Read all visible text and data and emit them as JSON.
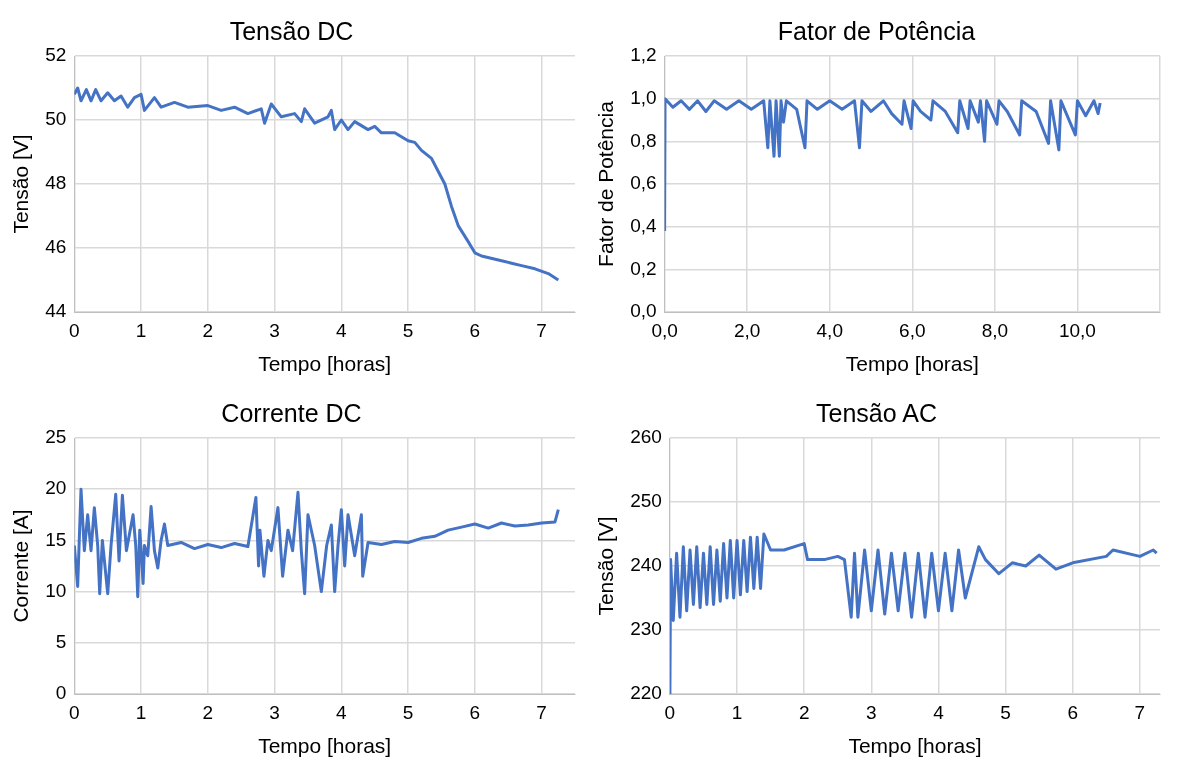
{
  "chart_data": [
    {
      "type": "line",
      "title": "Tensão DC",
      "xlabel": "Tempo [horas]",
      "ylabel": "Tensão [V]",
      "xlim": [
        0,
        7.5
      ],
      "xticks": [
        0,
        1,
        2,
        3,
        4,
        5,
        6,
        7
      ],
      "ylim": [
        44,
        52
      ],
      "yticks": [
        44,
        46,
        48,
        50,
        52
      ],
      "grid": true,
      "series": [
        {
          "color": "#4472c4",
          "x": [
            0,
            0.05,
            0.1,
            0.18,
            0.25,
            0.32,
            0.4,
            0.5,
            0.6,
            0.7,
            0.8,
            0.9,
            1.0,
            1.05,
            1.2,
            1.3,
            1.5,
            1.7,
            2.0,
            2.2,
            2.4,
            2.6,
            2.8,
            2.85,
            2.95,
            3.1,
            3.3,
            3.4,
            3.45,
            3.6,
            3.8,
            3.85,
            3.9,
            4.0,
            4.1,
            4.2,
            4.4,
            4.5,
            4.6,
            4.8,
            5.0,
            5.1,
            5.2,
            5.35,
            5.45,
            5.55,
            5.65,
            5.75,
            5.9,
            6.0,
            6.1,
            6.4,
            6.7,
            6.9,
            7.1,
            7.25
          ],
          "values": [
            50.8,
            51.0,
            50.6,
            50.95,
            50.6,
            50.95,
            50.6,
            50.85,
            50.6,
            50.75,
            50.4,
            50.7,
            50.8,
            50.3,
            50.7,
            50.4,
            50.55,
            50.4,
            50.45,
            50.3,
            50.4,
            50.2,
            50.35,
            49.9,
            50.5,
            50.1,
            50.2,
            49.95,
            50.35,
            49.9,
            50.1,
            50.3,
            49.7,
            50.0,
            49.7,
            49.95,
            49.7,
            49.8,
            49.6,
            49.6,
            49.35,
            49.3,
            49.05,
            48.8,
            48.4,
            48.0,
            47.3,
            46.7,
            46.2,
            45.85,
            45.75,
            45.6,
            45.45,
            45.35,
            45.2,
            45.0
          ]
        }
      ]
    },
    {
      "type": "line",
      "title": "Fator de Potência",
      "xlabel": "Tempo [horas]",
      "ylabel": "Fator de Potência",
      "xlim": [
        0,
        12
      ],
      "xticks": [
        {
          "value": 0,
          "label": "0,0"
        },
        {
          "value": 2,
          "label": "2,0"
        },
        {
          "value": 4,
          "label": "4,0"
        },
        {
          "value": 6,
          "label": "6,0"
        },
        {
          "value": 8,
          "label": "8,0"
        },
        {
          "value": 10,
          "label": "10,0"
        },
        {
          "value": 12,
          "label": null
        }
      ],
      "ylim": [
        0,
        1.2
      ],
      "yticks": [
        {
          "value": 0,
          "label": "0,0"
        },
        {
          "value": 0.2,
          "label": "0,2"
        },
        {
          "value": 0.4,
          "label": "0,4"
        },
        {
          "value": 0.6,
          "label": "0,6"
        },
        {
          "value": 0.8,
          "label": "0,8"
        },
        {
          "value": 1.0,
          "label": "1,0"
        },
        {
          "value": 1.2,
          "label": "1,2"
        }
      ],
      "grid": true,
      "series": [
        {
          "color": "#4472c4",
          "x": [
            0,
            0.01,
            0.2,
            0.4,
            0.6,
            0.8,
            1.0,
            1.2,
            1.5,
            1.8,
            2.1,
            2.4,
            2.5,
            2.55,
            2.65,
            2.7,
            2.78,
            2.82,
            2.88,
            2.95,
            3.2,
            3.4,
            3.45,
            3.7,
            4.0,
            4.3,
            4.6,
            4.72,
            4.78,
            5.0,
            5.3,
            5.5,
            5.75,
            5.8,
            5.97,
            6.02,
            6.2,
            6.45,
            6.5,
            6.8,
            7.1,
            7.15,
            7.35,
            7.4,
            7.6,
            7.65,
            7.75,
            7.8,
            8.05,
            8.1,
            8.3,
            8.6,
            8.65,
            9.0,
            9.3,
            9.35,
            9.55,
            9.6,
            9.95,
            10.0,
            10.2,
            10.4,
            10.5,
            10.55
          ],
          "values": [
            0.38,
            1.0,
            0.96,
            0.99,
            0.95,
            0.99,
            0.94,
            0.99,
            0.95,
            0.99,
            0.95,
            0.99,
            0.77,
            0.99,
            0.73,
            0.99,
            0.73,
            0.99,
            0.89,
            0.99,
            0.95,
            0.77,
            0.99,
            0.95,
            0.99,
            0.95,
            0.99,
            0.77,
            0.99,
            0.94,
            0.99,
            0.93,
            0.88,
            0.99,
            0.86,
            0.99,
            0.94,
            0.9,
            0.99,
            0.94,
            0.84,
            0.99,
            0.86,
            0.99,
            0.89,
            0.99,
            0.8,
            0.99,
            0.88,
            0.99,
            0.94,
            0.83,
            0.99,
            0.94,
            0.79,
            0.99,
            0.76,
            0.99,
            0.83,
            0.99,
            0.92,
            0.99,
            0.93,
            0.98
          ]
        }
      ]
    },
    {
      "type": "line",
      "title": "Corrente DC",
      "xlabel": "Tempo [horas]",
      "ylabel": "Corrente [A]",
      "xlim": [
        0,
        7.5
      ],
      "xticks": [
        0,
        1,
        2,
        3,
        4,
        5,
        6,
        7
      ],
      "ylim": [
        0,
        25
      ],
      "yticks": [
        0,
        5,
        10,
        15,
        20,
        25
      ],
      "grid": true,
      "series": [
        {
          "color": "#4472c4",
          "x": [
            0,
            0.05,
            0.1,
            0.15,
            0.2,
            0.25,
            0.3,
            0.35,
            0.38,
            0.42,
            0.5,
            0.55,
            0.62,
            0.67,
            0.72,
            0.78,
            0.88,
            0.92,
            0.95,
            0.98,
            1.0,
            1.03,
            1.05,
            1.1,
            1.15,
            1.2,
            1.25,
            1.3,
            1.35,
            1.4,
            1.6,
            1.8,
            2.0,
            2.2,
            2.4,
            2.6,
            2.72,
            2.76,
            2.78,
            2.84,
            2.9,
            2.95,
            3.05,
            3.12,
            3.2,
            3.27,
            3.35,
            3.4,
            3.45,
            3.5,
            3.6,
            3.7,
            3.78,
            3.85,
            3.9,
            3.95,
            4.0,
            4.05,
            4.1,
            4.2,
            4.3,
            4.32,
            4.4,
            4.6,
            4.8,
            5.0,
            5.2,
            5.4,
            5.6,
            5.8,
            6.0,
            6.2,
            6.4,
            6.6,
            6.8,
            7.0,
            7.2,
            7.25
          ],
          "values": [
            14.5,
            10.5,
            20.0,
            14.0,
            17.5,
            14.0,
            18.2,
            14.5,
            9.8,
            15.0,
            9.8,
            14.5,
            19.5,
            13.0,
            19.4,
            14.0,
            17.5,
            14.5,
            9.5,
            16.0,
            14.0,
            10.8,
            14.5,
            13.5,
            18.3,
            14.0,
            12.3,
            15.0,
            16.6,
            14.5,
            14.8,
            14.2,
            14.6,
            14.3,
            14.7,
            14.4,
            19.2,
            12.5,
            16.0,
            11.5,
            15.0,
            14.0,
            18.2,
            11.5,
            16.0,
            14.0,
            19.7,
            14.0,
            9.8,
            17.5,
            14.5,
            10.0,
            14.5,
            16.5,
            10.0,
            14.5,
            18.0,
            12.5,
            17.5,
            13.5,
            17.5,
            11.5,
            14.8,
            14.6,
            14.9,
            14.8,
            15.2,
            15.4,
            16.0,
            16.3,
            16.6,
            16.2,
            16.7,
            16.4,
            16.5,
            16.7,
            16.8,
            18.0
          ]
        }
      ]
    },
    {
      "type": "line",
      "title": "Tensão AC",
      "xlabel": "Tempo [horas]",
      "ylabel": "Tensão [V]",
      "xlim": [
        0,
        7.3
      ],
      "xticks": [
        0,
        1,
        2,
        3,
        4,
        5,
        6,
        7
      ],
      "ylim": [
        220,
        260
      ],
      "yticks": [
        220,
        230,
        240,
        250,
        260
      ],
      "grid": true,
      "series": [
        {
          "color": "#4472c4",
          "x": [
            0,
            0.01,
            0.05,
            0.1,
            0.15,
            0.2,
            0.25,
            0.3,
            0.35,
            0.4,
            0.45,
            0.5,
            0.55,
            0.6,
            0.65,
            0.7,
            0.75,
            0.8,
            0.85,
            0.9,
            0.95,
            1.0,
            1.05,
            1.1,
            1.15,
            1.2,
            1.25,
            1.3,
            1.35,
            1.4,
            1.5,
            1.7,
            2.0,
            2.05,
            2.3,
            2.5,
            2.6,
            2.7,
            2.75,
            2.8,
            2.9,
            3.0,
            3.1,
            3.2,
            3.3,
            3.4,
            3.5,
            3.6,
            3.7,
            3.8,
            3.9,
            4.0,
            4.1,
            4.2,
            4.3,
            4.4,
            4.6,
            4.7,
            4.9,
            5.1,
            5.3,
            5.5,
            5.75,
            6.0,
            6.5,
            6.6,
            7.0,
            7.2,
            7.25
          ],
          "values": [
            220,
            241,
            231.5,
            242,
            232,
            243,
            233,
            242.5,
            234,
            243,
            233.5,
            242,
            234,
            243,
            234,
            242.5,
            234.5,
            243.5,
            235,
            244,
            235,
            244,
            235.5,
            244,
            236,
            244.5,
            236.5,
            244.5,
            236.5,
            245,
            242.5,
            242.5,
            243.5,
            241,
            241,
            241.5,
            241,
            232,
            242,
            232,
            242.5,
            233,
            242.5,
            232.5,
            242,
            233,
            242,
            232,
            242,
            232,
            242,
            233,
            242,
            233,
            242.5,
            235,
            243,
            241,
            238.8,
            240.5,
            240,
            241.7,
            239.5,
            240.5,
            241.5,
            242.5,
            241.5,
            242.5,
            242
          ]
        }
      ]
    }
  ]
}
